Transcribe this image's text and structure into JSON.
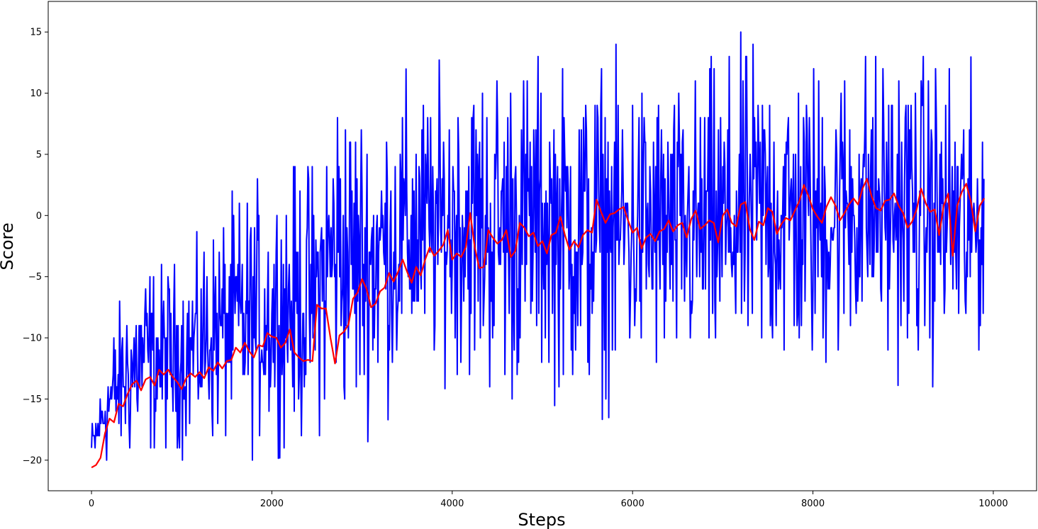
{
  "chart_data": {
    "type": "line",
    "title": "",
    "xlabel": "Steps",
    "ylabel": "Score",
    "xlim": [
      -480,
      10480
    ],
    "ylim": [
      -22.5,
      17.5
    ],
    "x_ticks": [
      0,
      2000,
      4000,
      6000,
      8000,
      10000
    ],
    "y_ticks": [
      15,
      10,
      5,
      0,
      -5,
      -10,
      -15,
      -20
    ],
    "x_tick_labels": [
      "0",
      "2000",
      "4000",
      "6000",
      "8000",
      "10000"
    ],
    "y_tick_labels": [
      "15",
      "10",
      "5",
      "0",
      "−5",
      "−10",
      "−15",
      "−20"
    ],
    "grid": false,
    "legend": "none",
    "series": [
      {
        "color": "#0000ff",
        "summary": "per-episode score",
        "x_range": [
          0,
          9900
        ],
        "envelope": [
          {
            "x": 0,
            "min": -21,
            "max": -17
          },
          {
            "x": 200,
            "min": -21,
            "max": -9
          },
          {
            "x": 500,
            "min": -21,
            "max": -3
          },
          {
            "x": 1000,
            "min": -20,
            "max": -3
          },
          {
            "x": 1500,
            "min": -20,
            "max": 2
          },
          {
            "x": 2000,
            "min": -20,
            "max": 4
          },
          {
            "x": 2500,
            "min": -19,
            "max": 6
          },
          {
            "x": 2700,
            "min": -18,
            "max": 13
          },
          {
            "x": 3000,
            "min": -19,
            "max": 11
          },
          {
            "x": 3500,
            "min": -15,
            "max": 12
          },
          {
            "x": 4000,
            "min": -14,
            "max": 13
          },
          {
            "x": 4500,
            "min": -17,
            "max": 15
          },
          {
            "x": 5000,
            "min": -15,
            "max": 14
          },
          {
            "x": 5500,
            "min": -17,
            "max": 14
          },
          {
            "x": 6000,
            "min": -16,
            "max": 14
          },
          {
            "x": 6500,
            "min": -15,
            "max": 12
          },
          {
            "x": 7000,
            "min": -16,
            "max": 14
          },
          {
            "x": 7400,
            "min": -15,
            "max": 16
          },
          {
            "x": 8000,
            "min": -15,
            "max": 14
          },
          {
            "x": 8500,
            "min": -13,
            "max": 15
          },
          {
            "x": 9000,
            "min": -14,
            "max": 15
          },
          {
            "x": 9500,
            "min": -14,
            "max": 14
          },
          {
            "x": 9750,
            "min": -17,
            "max": 13
          },
          {
            "x": 9900,
            "min": -10,
            "max": 10
          }
        ]
      },
      {
        "color": "#ff0000",
        "summary": "moving average",
        "points": [
          [
            0,
            -20.6
          ],
          [
            50,
            -20.4
          ],
          [
            100,
            -19.8
          ],
          [
            150,
            -17.8
          ],
          [
            200,
            -16.6
          ],
          [
            250,
            -16.9
          ],
          [
            300,
            -15.4
          ],
          [
            350,
            -15.6
          ],
          [
            400,
            -14.6
          ],
          [
            450,
            -13.8
          ],
          [
            500,
            -13.5
          ],
          [
            550,
            -14.3
          ],
          [
            600,
            -13.4
          ],
          [
            650,
            -13.2
          ],
          [
            700,
            -13.9
          ],
          [
            750,
            -12.6
          ],
          [
            800,
            -13.0
          ],
          [
            850,
            -12.6
          ],
          [
            900,
            -13.2
          ],
          [
            950,
            -13.6
          ],
          [
            1000,
            -14.2
          ],
          [
            1050,
            -13.3
          ],
          [
            1100,
            -12.9
          ],
          [
            1150,
            -13.2
          ],
          [
            1200,
            -12.8
          ],
          [
            1250,
            -13.3
          ],
          [
            1300,
            -12.4
          ],
          [
            1350,
            -12.7
          ],
          [
            1400,
            -12.0
          ],
          [
            1450,
            -12.5
          ],
          [
            1500,
            -11.9
          ],
          [
            1550,
            -11.8
          ],
          [
            1600,
            -10.8
          ],
          [
            1650,
            -11.2
          ],
          [
            1700,
            -10.4
          ],
          [
            1750,
            -11.1
          ],
          [
            1800,
            -11.6
          ],
          [
            1850,
            -10.6
          ],
          [
            1900,
            -10.7
          ],
          [
            1950,
            -9.6
          ],
          [
            2000,
            -9.9
          ],
          [
            2050,
            -10.0
          ],
          [
            2100,
            -10.8
          ],
          [
            2150,
            -10.4
          ],
          [
            2200,
            -9.3
          ],
          [
            2250,
            -11.2
          ],
          [
            2300,
            -11.6
          ],
          [
            2350,
            -11.9
          ],
          [
            2400,
            -11.8
          ],
          [
            2450,
            -11.9
          ],
          [
            2500,
            -7.3
          ],
          [
            2550,
            -7.6
          ],
          [
            2600,
            -7.6
          ],
          [
            2650,
            -10.0
          ],
          [
            2700,
            -12.1
          ],
          [
            2750,
            -9.8
          ],
          [
            2800,
            -9.5
          ],
          [
            2850,
            -8.9
          ],
          [
            2900,
            -6.8
          ],
          [
            2950,
            -6.3
          ],
          [
            3000,
            -5.2
          ],
          [
            3050,
            -6.0
          ],
          [
            3100,
            -7.5
          ],
          [
            3150,
            -7.2
          ],
          [
            3200,
            -6.2
          ],
          [
            3250,
            -5.9
          ],
          [
            3300,
            -4.7
          ],
          [
            3350,
            -5.4
          ],
          [
            3400,
            -4.6
          ],
          [
            3450,
            -3.6
          ],
          [
            3500,
            -4.6
          ],
          [
            3550,
            -5.5
          ],
          [
            3600,
            -4.2
          ],
          [
            3650,
            -4.9
          ],
          [
            3700,
            -3.6
          ],
          [
            3750,
            -2.6
          ],
          [
            3800,
            -3.3
          ],
          [
            3850,
            -2.9
          ],
          [
            3900,
            -2.4
          ],
          [
            3950,
            -1.2
          ],
          [
            4000,
            -3.6
          ],
          [
            4050,
            -3.1
          ],
          [
            4100,
            -3.4
          ],
          [
            4150,
            -2.6
          ],
          [
            4200,
            0.2
          ],
          [
            4250,
            -2.6
          ],
          [
            4300,
            -4.3
          ],
          [
            4350,
            -4.2
          ],
          [
            4400,
            -1.2
          ],
          [
            4450,
            -1.8
          ],
          [
            4500,
            -2.3
          ],
          [
            4550,
            -2.0
          ],
          [
            4600,
            -1.2
          ],
          [
            4650,
            -3.4
          ],
          [
            4700,
            -2.9
          ],
          [
            4750,
            -0.6
          ],
          [
            4800,
            -1.0
          ],
          [
            4850,
            -1.7
          ],
          [
            4900,
            -1.4
          ],
          [
            4950,
            -2.5
          ],
          [
            5000,
            -2.1
          ],
          [
            5050,
            -3.1
          ],
          [
            5100,
            -1.6
          ],
          [
            5150,
            -1.4
          ],
          [
            5200,
            -0.1
          ],
          [
            5250,
            -1.6
          ],
          [
            5300,
            -2.8
          ],
          [
            5350,
            -2.1
          ],
          [
            5400,
            -2.6
          ],
          [
            5450,
            -1.6
          ],
          [
            5500,
            -1.2
          ],
          [
            5550,
            -1.4
          ],
          [
            5600,
            1.3
          ],
          [
            5650,
            0.3
          ],
          [
            5700,
            -0.6
          ],
          [
            5750,
            0.1
          ],
          [
            5800,
            0.2
          ],
          [
            5850,
            0.5
          ],
          [
            5900,
            0.7
          ],
          [
            5950,
            -0.4
          ],
          [
            6000,
            -1.4
          ],
          [
            6050,
            -1.0
          ],
          [
            6100,
            -2.7
          ],
          [
            6150,
            -1.8
          ],
          [
            6200,
            -1.5
          ],
          [
            6250,
            -2.1
          ],
          [
            6300,
            -1.3
          ],
          [
            6350,
            -1.1
          ],
          [
            6400,
            -0.4
          ],
          [
            6450,
            -1.3
          ],
          [
            6500,
            -0.8
          ],
          [
            6550,
            -0.6
          ],
          [
            6600,
            -1.8
          ],
          [
            6650,
            -0.3
          ],
          [
            6700,
            0.4
          ],
          [
            6750,
            -1.1
          ],
          [
            6800,
            -0.8
          ],
          [
            6850,
            -0.4
          ],
          [
            6900,
            -0.6
          ],
          [
            6950,
            -2.2
          ],
          [
            7000,
            0.0
          ],
          [
            7050,
            0.5
          ],
          [
            7100,
            -0.6
          ],
          [
            7150,
            -0.9
          ],
          [
            7200,
            0.9
          ],
          [
            7250,
            1.1
          ],
          [
            7300,
            -1.1
          ],
          [
            7350,
            -2.0
          ],
          [
            7400,
            -0.5
          ],
          [
            7450,
            -0.8
          ],
          [
            7500,
            0.6
          ],
          [
            7550,
            0.3
          ],
          [
            7600,
            -1.5
          ],
          [
            7650,
            -0.7
          ],
          [
            7700,
            -0.2
          ],
          [
            7750,
            -0.4
          ],
          [
            7800,
            0.4
          ],
          [
            7850,
            1.2
          ],
          [
            7900,
            2.5
          ],
          [
            7950,
            1.6
          ],
          [
            8000,
            0.5
          ],
          [
            8050,
            -0.1
          ],
          [
            8100,
            -0.6
          ],
          [
            8150,
            0.7
          ],
          [
            8200,
            1.5
          ],
          [
            8250,
            0.8
          ],
          [
            8300,
            -0.4
          ],
          [
            8350,
            0.2
          ],
          [
            8400,
            0.9
          ],
          [
            8450,
            1.4
          ],
          [
            8500,
            0.9
          ],
          [
            8550,
            2.2
          ],
          [
            8600,
            3.0
          ],
          [
            8650,
            1.6
          ],
          [
            8700,
            0.6
          ],
          [
            8750,
            0.4
          ],
          [
            8800,
            1.2
          ],
          [
            8850,
            1.3
          ],
          [
            8900,
            1.8
          ],
          [
            8950,
            0.8
          ],
          [
            9000,
            0.2
          ],
          [
            9050,
            -1.0
          ],
          [
            9100,
            -0.5
          ],
          [
            9150,
            0.5
          ],
          [
            9200,
            2.2
          ],
          [
            9250,
            1.0
          ],
          [
            9300,
            0.3
          ],
          [
            9350,
            0.5
          ],
          [
            9400,
            -1.6
          ],
          [
            9450,
            0.8
          ],
          [
            9500,
            1.8
          ],
          [
            9550,
            -3.3
          ],
          [
            9600,
            0.8
          ],
          [
            9650,
            1.9
          ],
          [
            9700,
            2.6
          ],
          [
            9750,
            1.2
          ],
          [
            9800,
            -1.3
          ],
          [
            9850,
            0.8
          ],
          [
            9900,
            1.4
          ]
        ]
      }
    ]
  }
}
